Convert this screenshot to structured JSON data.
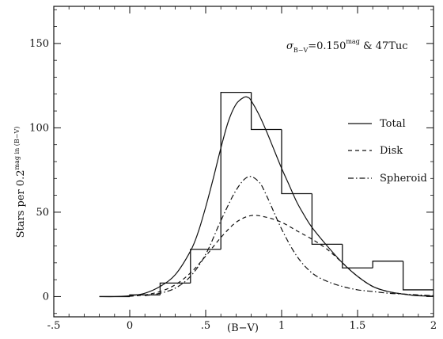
{
  "chart_data": {
    "type": "line",
    "title": "",
    "xlabel": "(B−V)",
    "ylabel": "Stars per 0.2mag in (B−V)",
    "ylabel_main": "Stars per 0.2",
    "ylabel_sup": "mag in (B−V)",
    "xlim": [
      -0.5,
      2
    ],
    "ylim": [
      -12,
      172
    ],
    "grid": false,
    "legend_position": "right",
    "x_ticks": [
      -0.5,
      0,
      0.5,
      1,
      1.5,
      2
    ],
    "x_tick_labels": [
      "-.5",
      "0",
      ".5",
      "1",
      "1.5",
      "2"
    ],
    "y_ticks": [
      0,
      50,
      100,
      150
    ],
    "y_tick_labels": [
      "0",
      "50",
      "100",
      "150"
    ],
    "annotation": {
      "sigma_main": "σ",
      "sigma_sub": "B−V",
      "value": "=0.150",
      "sup": "mag",
      "rest": " & 47Tuc"
    },
    "histogram": {
      "name": "",
      "bin_edges": [
        -0.2,
        0.0,
        0.2,
        0.4,
        0.6,
        0.8,
        1.0,
        1.2,
        1.4,
        1.6,
        1.8,
        2.0
      ],
      "counts": [
        0,
        1,
        8,
        28,
        121,
        99,
        61,
        31,
        17,
        21,
        4
      ]
    },
    "series": [
      {
        "name": "Total",
        "style": "solid",
        "x": [
          -0.2,
          -0.1,
          0.0,
          0.1,
          0.2,
          0.3,
          0.4,
          0.45,
          0.5,
          0.55,
          0.6,
          0.65,
          0.7,
          0.75,
          0.78,
          0.8,
          0.85,
          0.9,
          0.95,
          1.0,
          1.05,
          1.1,
          1.15,
          1.2,
          1.3,
          1.4,
          1.5,
          1.6,
          1.7,
          1.8,
          1.9,
          2.0
        ],
        "y": [
          0,
          0,
          0.5,
          2,
          6,
          13,
          27,
          38,
          53,
          70,
          88,
          104,
          114,
          118,
          118,
          116,
          108,
          98,
          87,
          76,
          66,
          56,
          48,
          41,
          30,
          20,
          12,
          6,
          3,
          1.5,
          0.5,
          0.3
        ]
      },
      {
        "name": "Disk",
        "style": "dashed",
        "x": [
          0.0,
          0.1,
          0.2,
          0.3,
          0.4,
          0.5,
          0.6,
          0.7,
          0.8,
          0.9,
          1.0,
          1.1,
          1.2,
          1.3,
          1.4,
          1.5,
          1.6,
          1.7,
          1.8,
          1.9,
          2.0
        ],
        "y": [
          0.2,
          1,
          3,
          7,
          14,
          24,
          35,
          44,
          48,
          47,
          44,
          39,
          34,
          28,
          20,
          12,
          6,
          3,
          1.5,
          0.6,
          0.3
        ]
      },
      {
        "name": "Spheroid",
        "style": "dashdot",
        "x": [
          0.1,
          0.2,
          0.3,
          0.4,
          0.5,
          0.6,
          0.7,
          0.78,
          0.85,
          0.9,
          1.0,
          1.1,
          1.2,
          1.3,
          1.4,
          1.5,
          1.6,
          1.7,
          1.8,
          1.9,
          2.0
        ],
        "y": [
          0.5,
          2,
          5,
          12,
          25,
          45,
          63,
          71,
          68,
          60,
          40,
          24,
          14,
          9,
          6,
          4,
          3,
          2,
          1.5,
          1,
          0.5
        ]
      }
    ],
    "legend": [
      {
        "label": "Total",
        "style": "solid"
      },
      {
        "label": "Disk",
        "style": "dashed"
      },
      {
        "label": "Spheroid",
        "style": "dashdot"
      }
    ]
  }
}
